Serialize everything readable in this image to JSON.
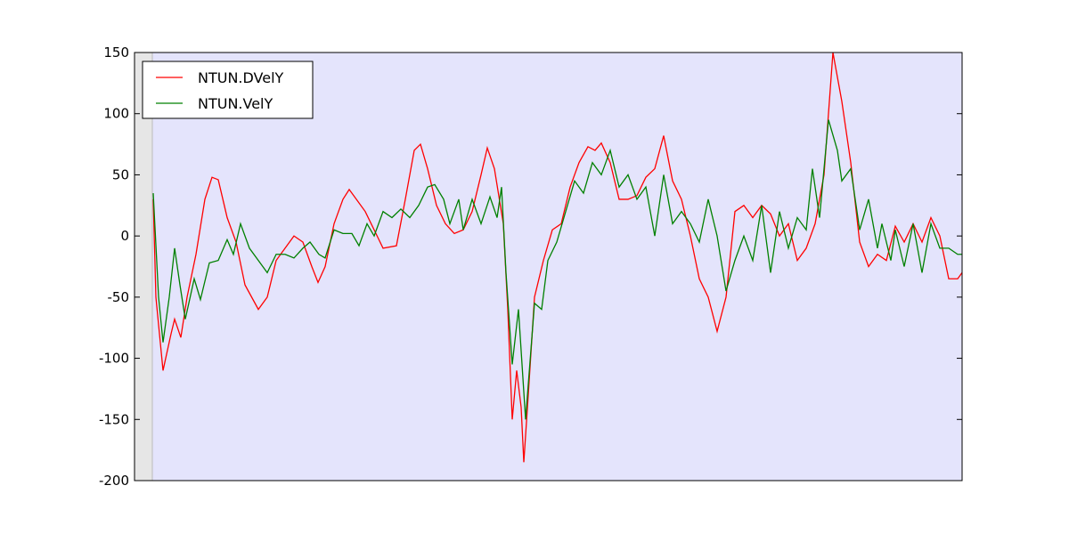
{
  "chart_data": {
    "type": "line",
    "xlim": [
      0,
      929
    ],
    "ylim": [
      -200,
      150
    ],
    "yticks": [
      -200,
      -150,
      -100,
      -50,
      0,
      50,
      100,
      150
    ],
    "legend": "upper left",
    "series": [
      {
        "name": "NTUN.DVelY",
        "color": "#ff0000",
        "x": [
          21,
          24,
          32,
          41,
          45,
          52,
          59,
          69,
          79,
          87,
          94,
          104,
          114,
          124,
          139,
          149,
          159,
          169,
          179,
          189,
          199,
          206,
          214,
          224,
          234,
          241,
          249,
          259,
          269,
          279,
          294,
          304,
          314,
          321,
          329,
          339,
          349,
          359,
          369,
          379,
          389,
          396,
          404,
          414,
          419,
          424,
          429,
          434,
          437,
          442,
          449,
          459,
          469,
          479,
          489,
          499,
          509,
          517,
          524,
          534,
          544,
          554,
          564,
          574,
          584,
          594,
          604,
          614,
          624,
          634,
          644,
          654,
          664,
          674,
          684,
          694,
          704,
          714,
          724,
          734,
          744,
          754,
          764,
          774,
          784,
          794,
          804,
          814,
          824,
          834,
          844,
          854,
          864,
          874,
          884,
          894,
          904,
          914,
          924,
          929
        ],
        "values": [
          30,
          -50,
          -110,
          -80,
          -68,
          -83,
          -50,
          -15,
          30,
          48,
          46,
          15,
          -5,
          -40,
          -60,
          -50,
          -20,
          -10,
          0,
          -5,
          -25,
          -38,
          -25,
          10,
          30,
          38,
          30,
          20,
          5,
          -10,
          -8,
          30,
          70,
          75,
          55,
          25,
          10,
          2,
          5,
          20,
          50,
          72,
          55,
          10,
          -60,
          -150,
          -110,
          -140,
          -185,
          -130,
          -50,
          -20,
          5,
          10,
          40,
          60,
          73,
          70,
          76,
          60,
          30,
          30,
          33,
          48,
          55,
          82,
          45,
          30,
          0,
          -35,
          -50,
          -78,
          -50,
          20,
          25,
          15,
          25,
          18,
          0,
          10,
          -20,
          -10,
          10,
          50,
          150,
          110,
          60,
          -5,
          -25,
          -15,
          -20,
          8,
          -5,
          10,
          -5,
          15,
          0,
          -35,
          -35,
          -30
        ]
      },
      {
        "name": "NTUN.VelY",
        "color": "#008000",
        "x": [
          21,
          27,
          32,
          39,
          45,
          51,
          57,
          67,
          74,
          84,
          94,
          104,
          111,
          119,
          129,
          139,
          149,
          159,
          169,
          179,
          189,
          197,
          207,
          214,
          224,
          234,
          244,
          252,
          261,
          269,
          279,
          289,
          299,
          309,
          319,
          329,
          337,
          347,
          354,
          364,
          369,
          379,
          389,
          399,
          407,
          412,
          417,
          424,
          431,
          439,
          449,
          457,
          464,
          474,
          484,
          494,
          504,
          514,
          524,
          534,
          544,
          554,
          564,
          574,
          584,
          594,
          604,
          614,
          624,
          634,
          644,
          654,
          664,
          674,
          684,
          694,
          704,
          714,
          724,
          734,
          744,
          754,
          761,
          769,
          779,
          789,
          794,
          804,
          814,
          824,
          834,
          839,
          849,
          854,
          864,
          874,
          884,
          894,
          904,
          914,
          924,
          929
        ],
        "values": [
          35,
          -50,
          -87,
          -50,
          -10,
          -40,
          -68,
          -35,
          -52,
          -22,
          -20,
          -3,
          -15,
          10,
          -10,
          -20,
          -30,
          -15,
          -15,
          -18,
          -10,
          -5,
          -15,
          -18,
          5,
          2,
          2,
          -8,
          10,
          0,
          20,
          15,
          22,
          15,
          25,
          40,
          42,
          30,
          10,
          30,
          5,
          30,
          10,
          32,
          15,
          40,
          -30,
          -105,
          -60,
          -150,
          -55,
          -60,
          -20,
          -5,
          20,
          45,
          35,
          60,
          50,
          70,
          40,
          50,
          30,
          40,
          0,
          50,
          10,
          20,
          10,
          -5,
          30,
          0,
          -45,
          -20,
          0,
          -20,
          25,
          -30,
          20,
          -10,
          15,
          5,
          55,
          15,
          95,
          70,
          45,
          55,
          5,
          30,
          -10,
          10,
          -20,
          5,
          -25,
          10,
          -30,
          10,
          -10,
          -10,
          -15,
          -15
        ]
      }
    ]
  }
}
